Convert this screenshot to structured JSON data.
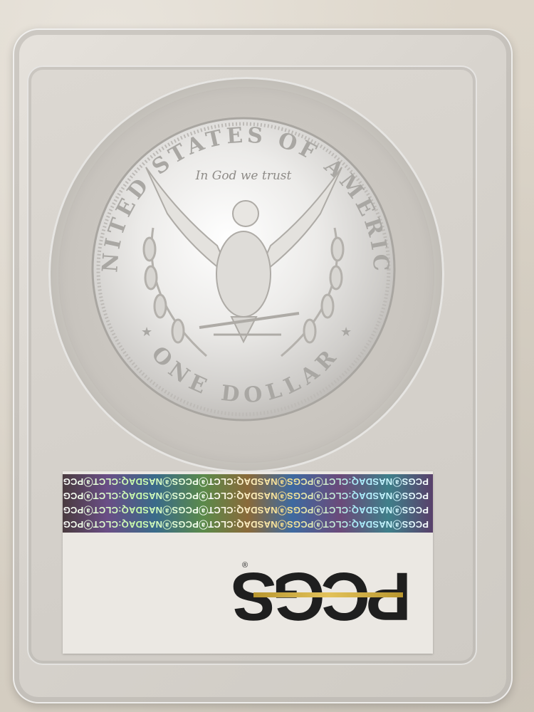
{
  "coin": {
    "legend_top": "UNITED STATES OF AMERICA",
    "motto": "In God we trust",
    "denomination": "ONE DOLLAR"
  },
  "label": {
    "hologram_text": "PCGSⓐNASDAQ:CLCTⓐPCGSⓐNASDAQ:CLCTⓐPCGSⓐNASDAQ:CLCTⓐPCGSⓐNASDAQ:CLCT",
    "logo": "PCGS",
    "registered_mark": "®"
  },
  "colors": {
    "logo": "#1f1f1f",
    "logo_gold": "#c9a43f",
    "silver": "#e9e9e9"
  }
}
